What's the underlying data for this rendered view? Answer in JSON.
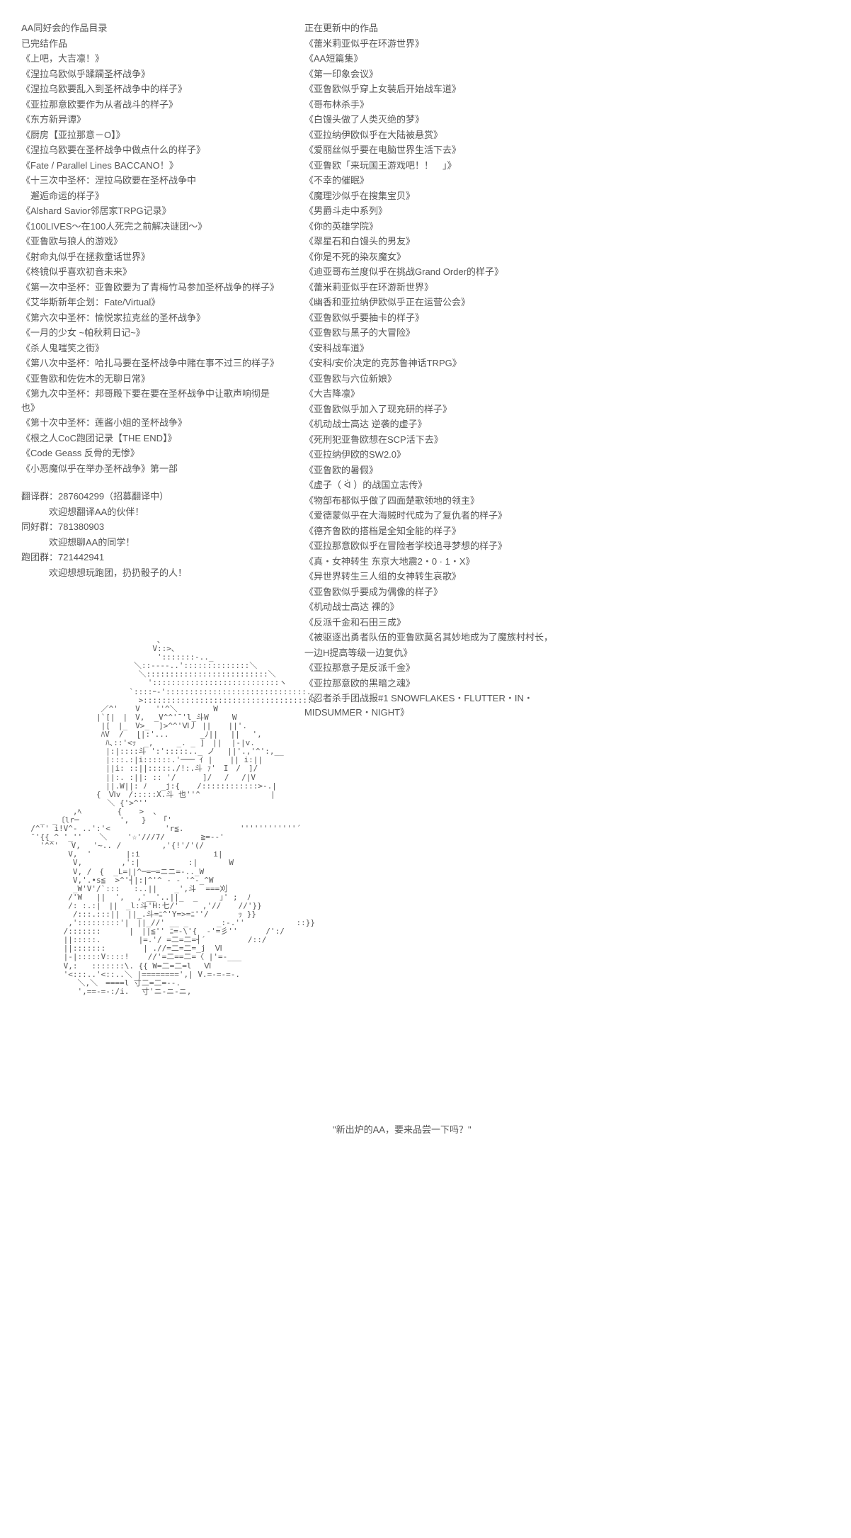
{
  "left": {
    "header1": "AA同好会的作品目录",
    "header2": "已完结作品",
    "works": [
      "《上吧，大吉凛！》",
      "《涅拉乌欧似乎蹂躏圣杯战争》",
      "《涅拉乌欧要乱入到圣杯战争中的样子》",
      "《亚拉那意欧要作为从者战斗的样子》",
      "《东方新异谭》",
      "《厨房【亚拉那意－O】》",
      "《涅拉乌欧要在圣杯战争中做点什么的样子》",
      "《Fate / Parallel Lines BACCANO！》",
      "《十三次中圣杯：涅拉乌欧要在圣杯战争中",
      "　邂逅命运的样子》",
      "《Alshard Savior邻居家TRPG记录》",
      "《100LIVES～在100人死完之前解决谜团～》",
      "《亚鲁欧与狼人的游戏》",
      "《射命丸似乎在拯救童话世界》",
      "《柊镜似乎喜欢初音未来》",
      "《第一次中圣杯：亚鲁欧要为了青梅竹马参加圣杯战争的样子》",
      "《艾华斯新年企划：Fate/Virtual》",
      "《第六次中圣杯：愉悦家拉克丝的圣杯战争》",
      "《一月的少女 ~帕秋莉日记~》",
      "《杀人鬼嗤笑之街》",
      "《第八次中圣杯：哈扎马要在圣杯战争中赌在事不过三的样子》",
      "《亚鲁欧和佐佐木的无聊日常》",
      "《第九次中圣杯：邦哥殿下要在要在圣杯战争中让歌声响彻是也》",
      "《第十次中圣杯：莲酱小姐的圣杯战争》",
      "《根之人CoC跑团记录【THE END】》",
      "《Code Geass 反骨的无惨》",
      "《小恶魔似乎在举办圣杯战争》第一部"
    ],
    "groups": {
      "g1_label": "翻译群：287604299（招募翻译中）",
      "g1_sub": "欢迎想翻译AA的伙伴！",
      "g2_label": "同好群：781380903",
      "g2_sub": "欢迎想聊AA的同学！",
      "g3_label": "跑团群：721442941",
      "g3_sub": "欢迎想想玩跑团，扔扔骰子的人！"
    },
    "ascii": "                             ､\n                            V::>､\n                             ':::::::-.._\n                        ＼::----..'::::::::::::::＼\n                         ＼::::::::::::::::::::::::::＼\n                           ':::::::::::::::::::::::::::ヽ\n                       `::::ｰ-'::::::::::::::::::::::::::::::.\n                         >::::::::::::::::::::::::::::::::::::l\n                 ／^' 　 V　　''^＼　      W\n                |`[|　|　V,  _V^^'¯'l_斗W     W\n                 |[　|_　V>_  ]>^^'Ⅵ丿 ||　  ||'.\n                 ﾊV  /　 ||:'...　     _ﾉ||　 ||　 ',\n                  ﾊ､::'<ｯ｀_,     _. _ ]　||  |-|v.\n                  |:|::::斗 ':':::::.._ ノ 　||'.,'^':,__\n                  |:::.:|i::::::.'─── ｲ |　  || i:||\n                  ||i: ::||:::::./!:.斗 ｧ'　Ι　/　]/\n                  ||:. :||: :: '/　    ]/　 / 　/|V\n                  ||.W||: ﾉ   _j:{ 　 /::::::::::::>-.|\n                {　Ⅵv　/:::::X.斗 也''^               |\n               　　＼ {'>^''\n           ,ﾍ　　　　 {　  >  ､\n    _　_〔lr─      　 ',　 } 　 ｢'\n  /^'' i!V^- ..':'<      　    'r≦.            ''''''''''''´\n  ¯'{{_^ '_'' 　 ＼　 　'☆'///7/     　 ≧=--'\n    '^^'　 V, 　'~.. / 　      ,'{!'/'(/\n          V,  '   　　 |:i          　    i|\n           V,　 　    ,':|　 　      :|　     W\n           V, /　{  _L=||^─=─=ニニ=-.._W\n           V,'.•s≦  >^'┤|:|^'^ - - '^-_^W\n           _W'V'/`:::   :..|| 　 _',斗  ===刈\n          /'W   ||  ',　 ,'__'..||_  _　   ｣' ;  ﾉ\n          /: :.:|　||　_l:斗'H:七/'     ,'// 　 //'}}\n           /:::.:::||　||_.斗=ﾆ^'Y=>=ﾆ''/  　 　ｯ }}\n          ,':::::::::'|　||_//' __ _      _:-.''           ::}}\n         /:::::::      |　||≦'' ﾆ=-\\'{  -'=彡''      /':/\n         ||:::::.        |=.'/ =二=二=┤´         /::/\n         ||:::::::        | .//=二=二=_j  Ⅵ\n         |-|:::::V::::!    //'=二==二=〈 |'=-___\n         V,:   :::::::\\. {{ W=二=二=l　 Ⅵ\n         '<:::..'<::..＼ |========',| V.=-=-=-.\n            ＼,＼　====l 寸二=二=--.\n            ',==-=-:/i.　 寸'ニ-ニ-ニ,"
  },
  "right": {
    "header": "正在更新中的作品",
    "works": [
      "《蕾米莉亚似乎在环游世界》",
      "《AA短篇集》",
      "《第一印象会议》",
      "《亚鲁欧似乎穿上女装后开始战车道》",
      "《哥布林杀手》",
      "《白馒头做了人类灭绝的梦》",
      "《亚拉纳伊欧似乎在大陆被悬赏》",
      "《爱丽丝似乎要在电脑世界生活下去》",
      "《亚鲁欧「来玩国王游戏吧！！　」》",
      "《不幸的催眠》",
      "《魔理沙似乎在搜集宝贝》",
      "《男爵斗走中系列》",
      "《你的英雄学院》",
      "《翠星石和白馒头的男友》",
      "《你是不死的染灰魔女》",
      "《迪亚哥布兰度似乎在挑战Grand Order的样子》",
      "《蕾米莉亚似乎在环游新世界》",
      "《幽香和亚拉纳伊欧似乎正在运营公会》",
      "《亚鲁欧似乎要抽卡的样子》",
      "《亚鲁欧与黑子的大冒险》",
      "《安科战车道》",
      "《安科/安价决定的克苏鲁神话TRPG》",
      "《亚鲁欧与六位新娘》",
      "《大吉降凛》",
      "《亚鲁欧似乎加入了现充研的样子》",
      "《机动战士高达 逆袭的虚子》",
      "《死刑犯亚鲁欧想在SCP活下去》",
      "《亚拉纳伊欧的SW2.0》",
      "《亚鲁欧的暑假》",
      "《虚子（ ᐛ ）的战国立志传》",
      "《物部布都似乎做了四面楚歌领地的领主》",
      "《爱德蒙似乎在大海贼时代成为了复仇者的样子》",
      "《德齐鲁欧的搭档是全知全能的样子》",
      "《亚拉那意欧似乎在冒险者学校追寻梦想的样子》",
      "《真・女神转生 东京大地震2・0 · 1・X》",
      "《异世界转生三人组的女神转生哀歌》",
      "《亚鲁欧似乎要成为偶像的样子》",
      "《机动战士高达 裸的》",
      "《反派千金和石田三成》",
      "《被驱逐出勇者队伍的亚鲁欧莫名其妙地成为了魔族村村长，",
      "一边H提高等级一边复仇》",
      "《亚拉那意子是反派千金》",
      "《亚拉那意欧的黑暗之魂》",
      "《忍者杀手团战报#1 SNOWFLAKES・FLUTTER・IN・MIDSUMMER・NIGHT》"
    ],
    "quote": "\"新出炉的AA，要来品尝一下吗？\""
  }
}
